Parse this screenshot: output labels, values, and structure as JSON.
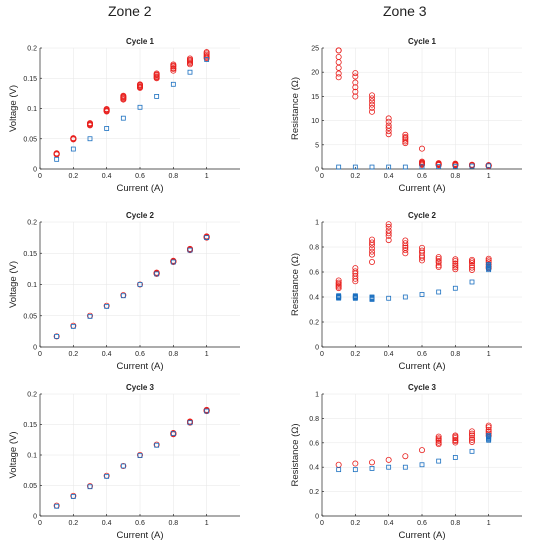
{
  "zones": [
    "Zone 2",
    "Zone 3"
  ],
  "colors": {
    "red": "#e8201e",
    "blue": "#1a6fc0"
  },
  "chart_data": [
    {
      "type": "scatter",
      "title": "Cycle 1",
      "xlabel": "Current (A)",
      "ylabel": "Voltage (V)",
      "xlim": [
        0,
        1.2
      ],
      "ylim": [
        0,
        0.2
      ],
      "xticks": [
        "0",
        "0.2",
        "0.4",
        "0.6",
        "0.8",
        "1"
      ],
      "xtick_values": [
        0,
        0.2,
        0.4,
        0.6,
        0.8,
        1
      ],
      "yticks": [
        "0",
        "0.05",
        "0.1",
        "0.15",
        "0.2"
      ],
      "ytick_values": [
        0,
        0.05,
        0.1,
        0.15,
        0.2
      ],
      "series": [
        {
          "marker": "circle",
          "color": "red",
          "x": [
            0.1,
            0.2,
            0.3,
            0.4,
            0.5,
            0.6,
            0.7,
            0.8,
            0.9,
            1.0
          ],
          "y": [
            0.025,
            0.05,
            0.074,
            0.097,
            0.118,
            0.137,
            0.154,
            0.168,
            0.178,
            0.188
          ],
          "spread": [
            0.001,
            0.001,
            0.002,
            0.002,
            0.003,
            0.003,
            0.004,
            0.005,
            0.005,
            0.005
          ]
        },
        {
          "marker": "square",
          "color": "blue",
          "x": [
            0.1,
            0.2,
            0.3,
            0.4,
            0.5,
            0.6,
            0.7,
            0.8,
            0.9,
            1.0
          ],
          "y": [
            0.016,
            0.033,
            0.05,
            0.067,
            0.084,
            0.102,
            0.12,
            0.14,
            0.16,
            0.181
          ],
          "spread": [
            0,
            0,
            0,
            0,
            0,
            0,
            0,
            0,
            0,
            0
          ]
        }
      ]
    },
    {
      "type": "scatter",
      "title": "Cycle 1",
      "xlabel": "Current (A)",
      "ylabel": "Resistance (Ω)",
      "xlim": [
        0,
        1.2
      ],
      "ylim": [
        0,
        25
      ],
      "xticks": [
        "0",
        "0.2",
        "0.4",
        "0.6",
        "0.8",
        "1"
      ],
      "xtick_values": [
        0,
        0.2,
        0.4,
        0.6,
        0.8,
        1
      ],
      "yticks": [
        "0",
        "5",
        "10",
        "15",
        "20",
        "25"
      ],
      "ytick_values": [
        0,
        5,
        10,
        15,
        20,
        25
      ],
      "series": [
        {
          "marker": "circle",
          "color": "red",
          "x": [
            0.1,
            0.2,
            0.3,
            0.4,
            0.5,
            0.6,
            0.7,
            0.8,
            0.9,
            1.0
          ],
          "y": [
            21.5,
            17.5,
            13.5,
            8.8,
            6.2,
            1.2,
            1.0,
            0.9,
            0.8,
            0.7
          ],
          "spread": [
            2.8,
            2.5,
            1.6,
            1.7,
            0.8,
            0.3,
            0.2,
            0.2,
            0.1,
            0.1
          ]
        },
        {
          "marker": "circle",
          "color": "red",
          "x": [
            0.1,
            0.6
          ],
          "y": [
            24.5,
            4.2
          ],
          "spread": [
            0,
            0
          ]
        },
        {
          "marker": "square",
          "color": "blue",
          "x": [
            0.1,
            0.2,
            0.3,
            0.4,
            0.5,
            0.6,
            0.7,
            0.8,
            0.9,
            1.0
          ],
          "y": [
            0.4,
            0.4,
            0.4,
            0.4,
            0.4,
            0.45,
            0.5,
            0.55,
            0.6,
            0.65
          ],
          "spread": [
            0,
            0,
            0,
            0,
            0,
            0,
            0,
            0,
            0,
            0
          ]
        }
      ]
    },
    {
      "type": "scatter",
      "title": "Cycle 2",
      "xlabel": "Current (A)",
      "ylabel": "Voltage (V)",
      "xlim": [
        0,
        1.2
      ],
      "ylim": [
        0,
        0.2
      ],
      "xticks": [
        "0",
        "0.2",
        "0.4",
        "0.6",
        "0.8",
        "1"
      ],
      "xtick_values": [
        0,
        0.2,
        0.4,
        0.6,
        0.8,
        1
      ],
      "yticks": [
        "0",
        "0.05",
        "0.1",
        "0.15",
        "0.2"
      ],
      "ytick_values": [
        0,
        0.05,
        0.1,
        0.15,
        0.2
      ],
      "series": [
        {
          "marker": "circle",
          "color": "red",
          "x": [
            0.1,
            0.2,
            0.3,
            0.4,
            0.5,
            0.6,
            0.7,
            0.8,
            0.9,
            1.0
          ],
          "y": [
            0.017,
            0.034,
            0.05,
            0.066,
            0.083,
            0.1,
            0.118,
            0.137,
            0.156,
            0.176
          ],
          "spread": [
            0,
            0,
            0,
            0,
            0,
            0,
            0.001,
            0.001,
            0.001,
            0.001
          ]
        },
        {
          "marker": "square",
          "color": "blue",
          "x": [
            0.1,
            0.2,
            0.3,
            0.4,
            0.5,
            0.6,
            0.7,
            0.8,
            0.9,
            1.0
          ],
          "y": [
            0.017,
            0.033,
            0.049,
            0.065,
            0.082,
            0.1,
            0.117,
            0.136,
            0.155,
            0.175
          ],
          "spread": [
            0,
            0,
            0,
            0,
            0,
            0,
            0,
            0,
            0,
            0
          ]
        }
      ]
    },
    {
      "type": "scatter",
      "title": "Cycle 2",
      "xlabel": "Current (A)",
      "ylabel": "Resistance (Ω)",
      "xlim": [
        0,
        1.2
      ],
      "ylim": [
        0,
        1
      ],
      "xticks": [
        "0",
        "0.2",
        "0.4",
        "0.6",
        "0.8",
        "1"
      ],
      "xtick_values": [
        0,
        0.2,
        0.4,
        0.6,
        0.8,
        1
      ],
      "yticks": [
        "0",
        "0.2",
        "0.4",
        "0.6",
        "0.8",
        "1"
      ],
      "ytick_values": [
        0,
        0.2,
        0.4,
        0.6,
        0.8,
        1
      ],
      "series": [
        {
          "marker": "circle",
          "color": "red",
          "x": [
            0.1,
            0.2,
            0.3,
            0.4,
            0.5,
            0.6,
            0.7,
            0.8,
            0.9,
            1.0
          ],
          "y": [
            0.5,
            0.58,
            0.8,
            0.92,
            0.8,
            0.74,
            0.68,
            0.66,
            0.66,
            0.67
          ],
          "spread": [
            0.03,
            0.05,
            0.06,
            0.06,
            0.05,
            0.05,
            0.04,
            0.04,
            0.04,
            0.04
          ]
        },
        {
          "marker": "circle",
          "color": "red",
          "x": [
            0.3
          ],
          "y": [
            0.68
          ],
          "spread": [
            0
          ]
        },
        {
          "marker": "square",
          "color": "blue",
          "x": [
            0.1,
            0.2,
            0.3,
            0.4,
            0.5,
            0.6,
            0.7,
            0.8,
            0.9,
            1.0
          ],
          "y": [
            0.4,
            0.4,
            0.39,
            0.39,
            0.4,
            0.42,
            0.44,
            0.47,
            0.52,
            0.64
          ],
          "spread": [
            0.01,
            0.01,
            0.01,
            0,
            0,
            0,
            0,
            0,
            0,
            0.02
          ]
        }
      ]
    },
    {
      "type": "scatter",
      "title": "Cycle 3",
      "xlabel": "Current (A)",
      "ylabel": "Voltage (V)",
      "xlim": [
        0,
        1.2
      ],
      "ylim": [
        0,
        0.2
      ],
      "xticks": [
        "0",
        "0.2",
        "0.4",
        "0.6",
        "0.8",
        "1"
      ],
      "xtick_values": [
        0,
        0.2,
        0.4,
        0.6,
        0.8,
        1
      ],
      "yticks": [
        "0",
        "0.05",
        "0.1",
        "0.15",
        "0.2"
      ],
      "ytick_values": [
        0,
        0.05,
        0.1,
        0.15,
        0.2
      ],
      "series": [
        {
          "marker": "circle",
          "color": "red",
          "x": [
            0.1,
            0.2,
            0.3,
            0.4,
            0.5,
            0.6,
            0.7,
            0.8,
            0.9,
            1.0
          ],
          "y": [
            0.017,
            0.033,
            0.049,
            0.066,
            0.082,
            0.1,
            0.117,
            0.135,
            0.154,
            0.173
          ],
          "spread": [
            0,
            0,
            0,
            0,
            0,
            0,
            0,
            0.001,
            0.001,
            0.001
          ]
        },
        {
          "marker": "square",
          "color": "blue",
          "x": [
            0.1,
            0.2,
            0.3,
            0.4,
            0.5,
            0.6,
            0.7,
            0.8,
            0.9,
            1.0
          ],
          "y": [
            0.016,
            0.032,
            0.048,
            0.065,
            0.082,
            0.099,
            0.116,
            0.135,
            0.153,
            0.172
          ],
          "spread": [
            0,
            0,
            0,
            0,
            0,
            0,
            0,
            0,
            0,
            0
          ]
        }
      ]
    },
    {
      "type": "scatter",
      "title": "Cycle 3",
      "xlabel": "Current (A)",
      "ylabel": "Resistance (Ω)",
      "xlim": [
        0,
        1.2
      ],
      "ylim": [
        0,
        1
      ],
      "xticks": [
        "0",
        "0.2",
        "0.4",
        "0.6",
        "0.8",
        "1"
      ],
      "xtick_values": [
        0,
        0.2,
        0.4,
        0.6,
        0.8,
        1
      ],
      "yticks": [
        "0",
        "0.2",
        "0.4",
        "0.6",
        "0.8",
        "1"
      ],
      "ytick_values": [
        0,
        0.2,
        0.4,
        0.6,
        0.8,
        1
      ],
      "series": [
        {
          "marker": "circle",
          "color": "red",
          "x": [
            0.1,
            0.2,
            0.3,
            0.4,
            0.5,
            0.6,
            0.7,
            0.8,
            0.9,
            1.0
          ],
          "y": [
            0.42,
            0.43,
            0.44,
            0.46,
            0.49,
            0.54,
            0.62,
            0.63,
            0.65,
            0.7
          ],
          "spread": [
            0,
            0,
            0,
            0,
            0,
            0,
            0.03,
            0.03,
            0.04,
            0.04
          ]
        },
        {
          "marker": "square",
          "color": "blue",
          "x": [
            0.1,
            0.2,
            0.3,
            0.4,
            0.5,
            0.6,
            0.7,
            0.8,
            0.9,
            1.0
          ],
          "y": [
            0.38,
            0.38,
            0.39,
            0.4,
            0.4,
            0.42,
            0.45,
            0.48,
            0.53,
            0.64
          ],
          "spread": [
            0,
            0,
            0,
            0,
            0,
            0,
            0,
            0,
            0,
            0.02
          ]
        }
      ]
    }
  ]
}
